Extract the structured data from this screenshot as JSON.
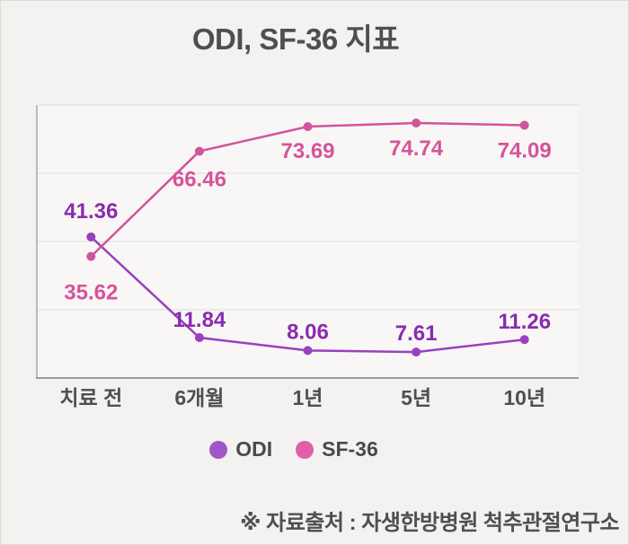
{
  "title": "ODI, SF-36 지표",
  "source_note": "※ 자료출처 : 자생한방병원 척추관절연구소",
  "legend": [
    {
      "label": "ODI",
      "color": "#a156c6"
    },
    {
      "label": "SF-36",
      "color": "#e05fa8"
    }
  ],
  "colors": {
    "page_bg": "#f3f2f0",
    "plot_bg": "#f8f7f5",
    "grid": "#dddcda",
    "y_axis": "#a8a8a8",
    "x_axis": "#9b9b9b",
    "text": "#4f4f4f"
  },
  "chart_data": {
    "type": "line",
    "title": "ODI, SF-36 지표",
    "categories": [
      "치료 전",
      "6개월",
      "1년",
      "5년",
      "10년"
    ],
    "series": [
      {
        "name": "ODI",
        "color": "#9a40bf",
        "label_color": "#8a2bb1",
        "values": [
          41.36,
          11.84,
          8.06,
          7.61,
          11.26
        ],
        "label_dy": [
          -21,
          -12,
          -13,
          -13,
          -12
        ]
      },
      {
        "name": "SF-36",
        "color": "#d1549c",
        "label_color": "#d7539b",
        "values": [
          35.62,
          66.46,
          73.69,
          74.74,
          74.09
        ],
        "label_dy": [
          48,
          39,
          35,
          36,
          36
        ]
      }
    ],
    "xlabel": "",
    "ylabel": "",
    "ylim": [
      0,
      80
    ],
    "gridlines": [
      0,
      20,
      40,
      60,
      80
    ],
    "grid": "horizontal",
    "legend_position": "bottom",
    "point_marker": "circle",
    "data_labels": "on"
  }
}
